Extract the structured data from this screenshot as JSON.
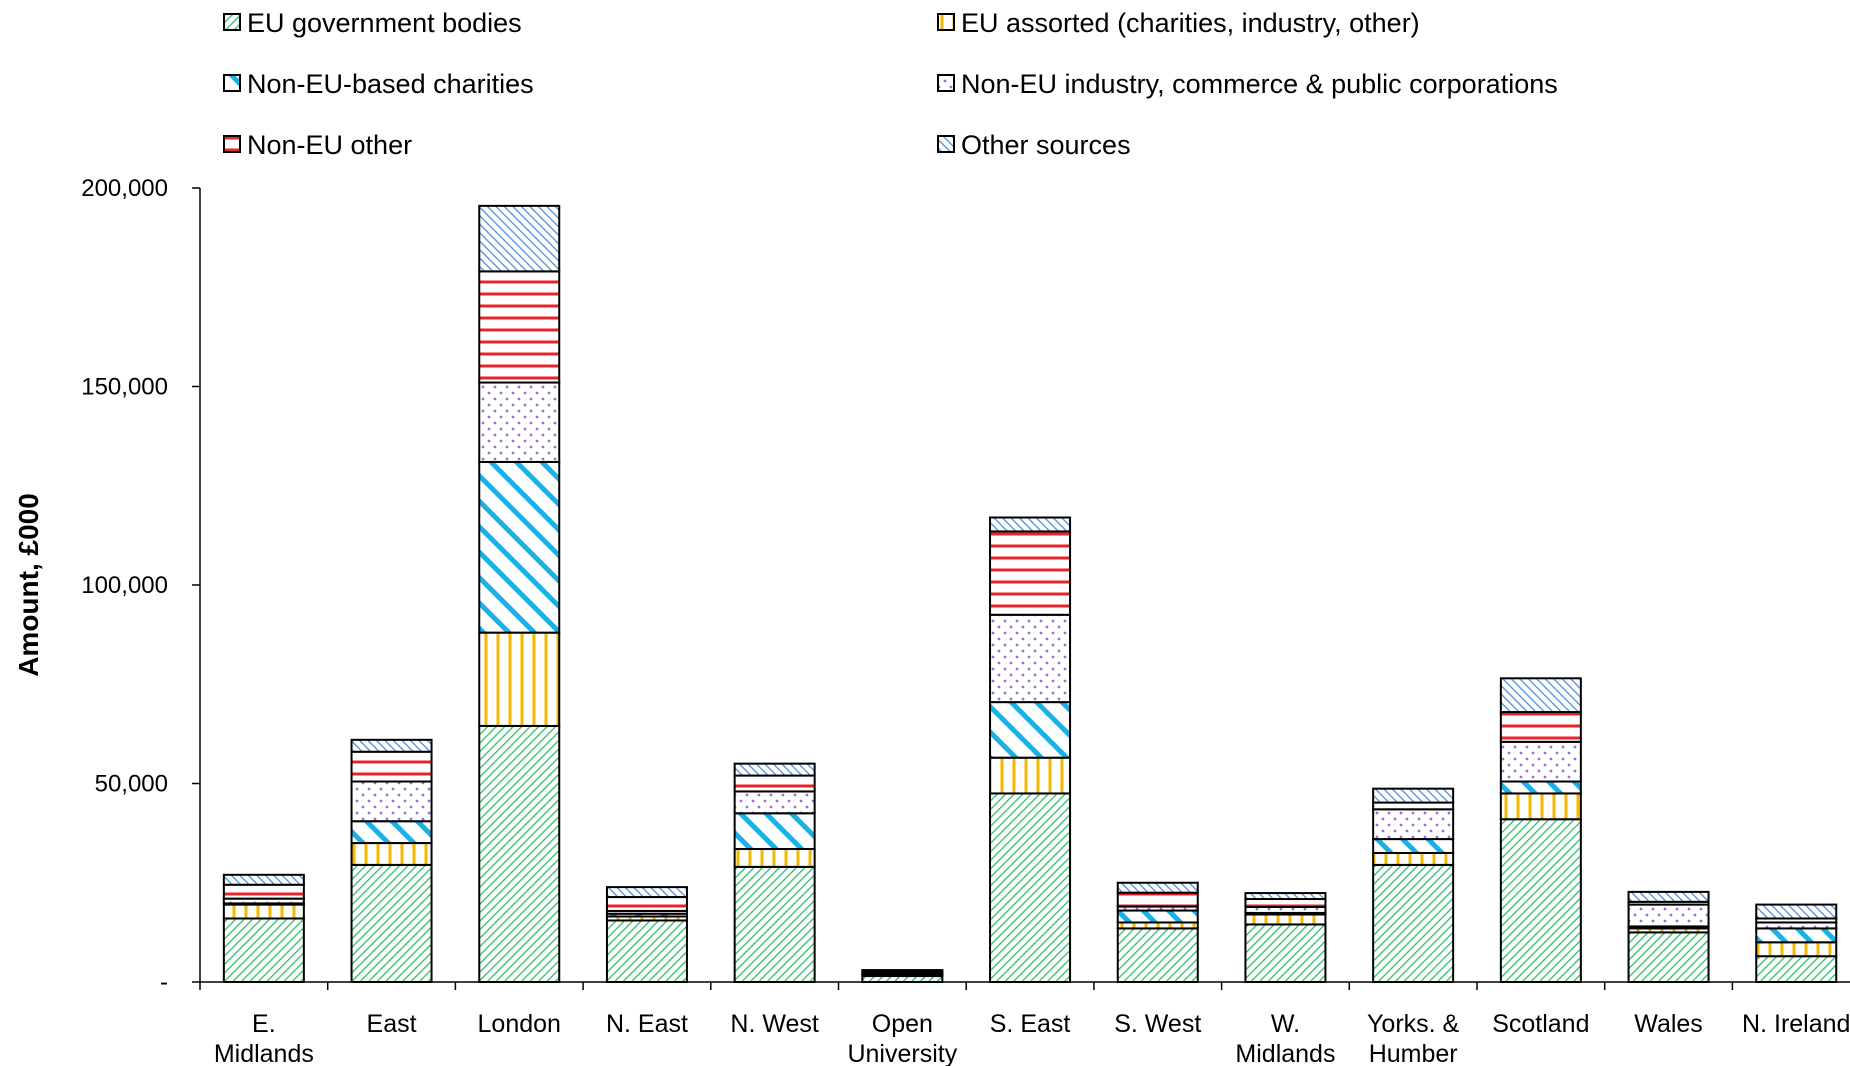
{
  "chart_data": {
    "type": "bar",
    "stacked": true,
    "title": "",
    "xlabel": "",
    "ylabel": "Amount, £000",
    "ylim": [
      0,
      200000
    ],
    "yticks": [
      {
        "value": 0,
        "label": "-"
      },
      {
        "value": 50000,
        "label": "50,000"
      },
      {
        "value": 100000,
        "label": "100,000"
      },
      {
        "value": 150000,
        "label": "150,000"
      },
      {
        "value": 200000,
        "label": "200,000"
      }
    ],
    "categories": [
      [
        "E.",
        "Midlands"
      ],
      [
        "East"
      ],
      [
        "London"
      ],
      [
        "N. East"
      ],
      [
        "N. West"
      ],
      [
        "Open",
        "University"
      ],
      [
        "S. East"
      ],
      [
        "S. West"
      ],
      [
        "W.",
        "Midlands"
      ],
      [
        "Yorks. &",
        "Humber"
      ],
      [
        "Scotland"
      ],
      [
        "Wales"
      ],
      [
        "N. Ireland"
      ]
    ],
    "legend_position": "top",
    "series": [
      {
        "name": "EU government bodies",
        "pattern": "diag-fine",
        "color": "#2fbf6a",
        "values": [
          16000,
          29500,
          64500,
          15500,
          29000,
          1500,
          47500,
          13500,
          14500,
          29500,
          41000,
          12500,
          6500
        ]
      },
      {
        "name": "EU assorted (charities, industry, other)",
        "pattern": "vertical",
        "color": "#f5b800",
        "values": [
          3500,
          5500,
          23500,
          1000,
          4500,
          300,
          9000,
          1500,
          2500,
          3000,
          6500,
          1000,
          3500
        ]
      },
      {
        "name": "Non-EU-based charities",
        "pattern": "diag-wide",
        "color": "#1ab0e8",
        "values": [
          300,
          5500,
          43000,
          700,
          9000,
          200,
          14000,
          3000,
          400,
          3500,
          3000,
          500,
          3500
        ]
      },
      {
        "name": "Non-EU industry, commerce & public corporations",
        "pattern": "dots",
        "color": "#9b6fd6",
        "values": [
          1200,
          10000,
          20000,
          700,
          5500,
          300,
          22000,
          1000,
          1500,
          7500,
          10000,
          5500,
          1500
        ]
      },
      {
        "name": "Non-EU other",
        "pattern": "horizontal",
        "color": "#e8242b",
        "values": [
          3500,
          7500,
          28000,
          3500,
          4000,
          500,
          21000,
          3500,
          2000,
          1700,
          7500,
          700,
          1000
        ]
      },
      {
        "name": "Other sources",
        "pattern": "diag-hatch",
        "color": "#4f8fd8",
        "values": [
          2500,
          3000,
          16500,
          2500,
          3000,
          200,
          3500,
          2500,
          1500,
          3500,
          8500,
          2500,
          3500
        ]
      }
    ]
  }
}
